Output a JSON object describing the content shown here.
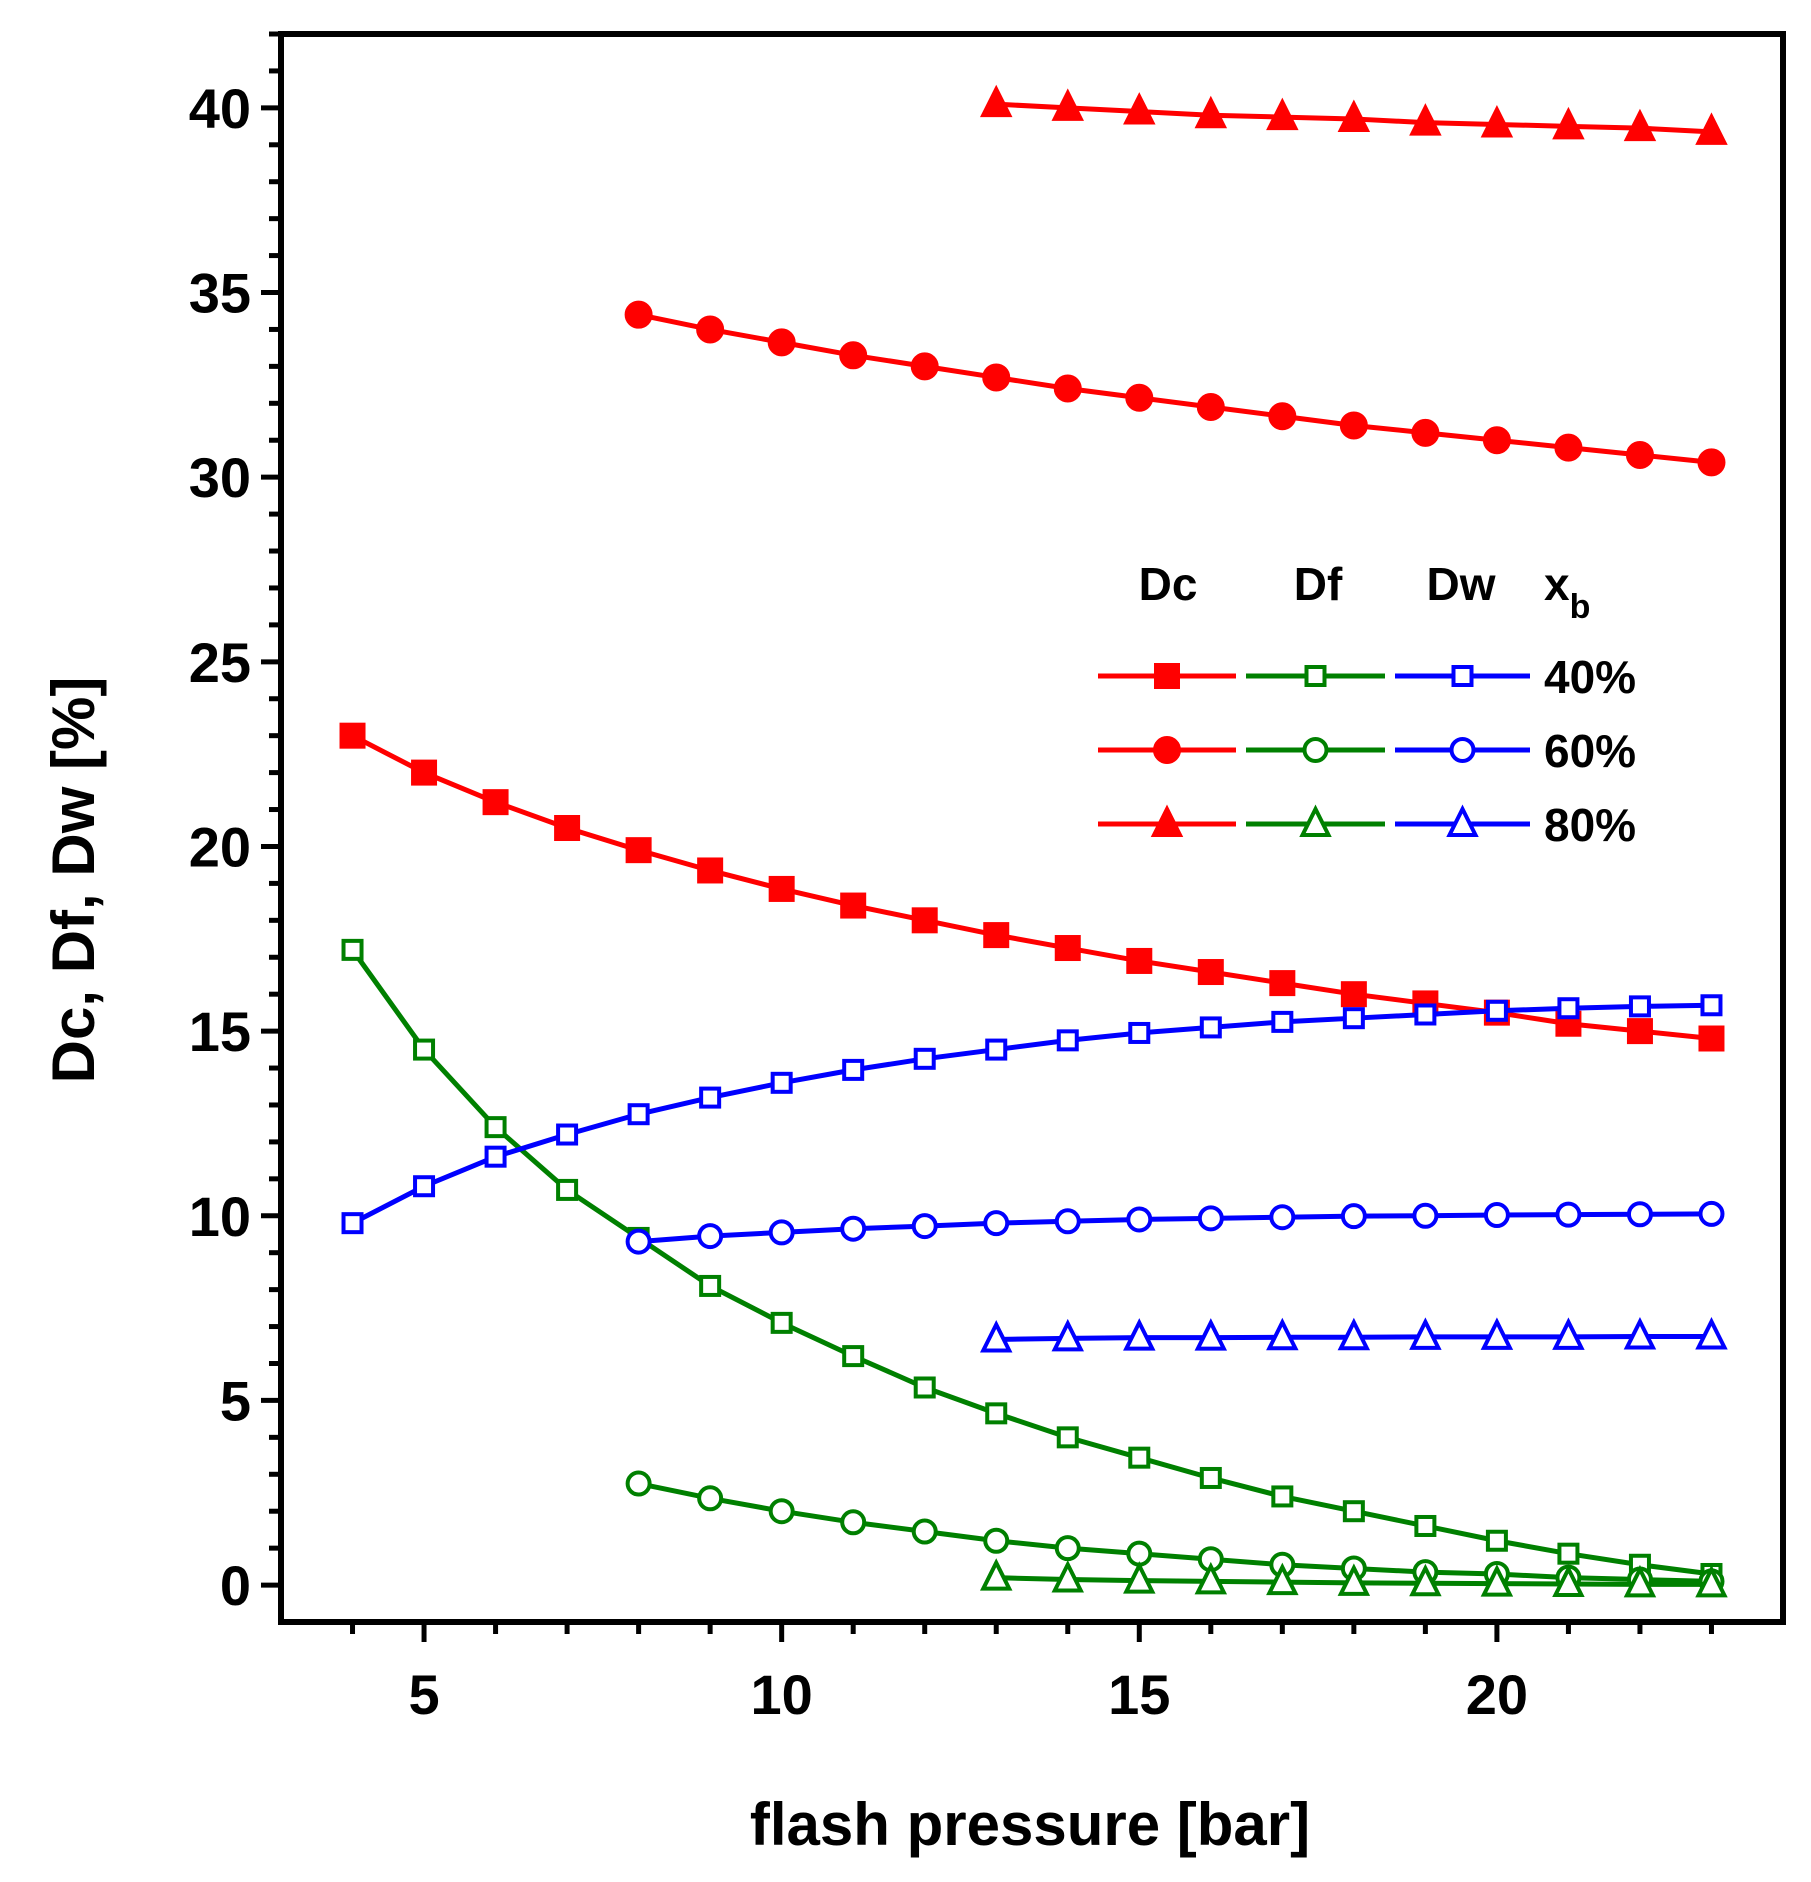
{
  "chart_data": {
    "type": "line",
    "title": "",
    "xlabel": "flash pressure [bar]",
    "ylabel": "Dc, Df, Dw [%]",
    "xlim": [
      3,
      24
    ],
    "ylim": [
      -1,
      42
    ],
    "xticks": [
      5,
      10,
      15,
      20
    ],
    "yticks": [
      0,
      5,
      10,
      15,
      20,
      25,
      30,
      35,
      40
    ],
    "grid": false,
    "colors": {
      "Dc": "#ff0000",
      "Df": "#008000",
      "Dw": "#0000ff"
    },
    "legend": {
      "position": "right",
      "col_headers": [
        "Dc",
        "Df",
        "Dw"
      ],
      "xb_label": "x",
      "xb_sub": "b",
      "rows": [
        {
          "label": "40%",
          "marker": "square"
        },
        {
          "label": "60%",
          "marker": "circle"
        },
        {
          "label": "80%",
          "marker": "triangle"
        }
      ]
    },
    "series": [
      {
        "name": "Dc 40%",
        "quantity": "Dc",
        "xb": "40%",
        "marker": "square",
        "filled": true,
        "color": "#ff0000",
        "x": [
          4,
          5,
          6,
          7,
          8,
          9,
          10,
          11,
          12,
          13,
          14,
          15,
          16,
          17,
          18,
          19,
          20,
          21,
          22,
          23
        ],
        "y": [
          23.0,
          22.0,
          21.2,
          20.5,
          19.9,
          19.35,
          18.85,
          18.4,
          18.0,
          17.6,
          17.25,
          16.9,
          16.6,
          16.3,
          16.0,
          15.75,
          15.5,
          15.2,
          15.0,
          14.8
        ]
      },
      {
        "name": "Df 40%",
        "quantity": "Df",
        "xb": "40%",
        "marker": "square",
        "filled": false,
        "color": "#008000",
        "x": [
          4,
          5,
          6,
          7,
          8,
          9,
          10,
          11,
          12,
          13,
          14,
          15,
          16,
          17,
          18,
          19,
          20,
          21,
          22,
          23
        ],
        "y": [
          17.2,
          14.5,
          12.4,
          10.7,
          9.4,
          8.1,
          7.1,
          6.2,
          5.35,
          4.65,
          4.0,
          3.45,
          2.9,
          2.4,
          2.0,
          1.6,
          1.2,
          0.85,
          0.55,
          0.3
        ]
      },
      {
        "name": "Dw 40%",
        "quantity": "Dw",
        "xb": "40%",
        "marker": "square",
        "filled": false,
        "color": "#0000ff",
        "x": [
          4,
          5,
          6,
          7,
          8,
          9,
          10,
          11,
          12,
          13,
          14,
          15,
          16,
          17,
          18,
          19,
          20,
          21,
          22,
          23
        ],
        "y": [
          9.8,
          10.8,
          11.6,
          12.2,
          12.75,
          13.2,
          13.6,
          13.95,
          14.25,
          14.5,
          14.75,
          14.95,
          15.1,
          15.25,
          15.35,
          15.45,
          15.55,
          15.62,
          15.67,
          15.7
        ]
      },
      {
        "name": "Dc 60%",
        "quantity": "Dc",
        "xb": "60%",
        "marker": "circle",
        "filled": true,
        "color": "#ff0000",
        "x": [
          8,
          9,
          10,
          11,
          12,
          13,
          14,
          15,
          16,
          17,
          18,
          19,
          20,
          21,
          22,
          23
        ],
        "y": [
          34.4,
          34.0,
          33.65,
          33.3,
          33.0,
          32.7,
          32.4,
          32.15,
          31.9,
          31.65,
          31.4,
          31.2,
          31.0,
          30.8,
          30.6,
          30.4
        ]
      },
      {
        "name": "Df 60%",
        "quantity": "Df",
        "xb": "60%",
        "marker": "circle",
        "filled": false,
        "color": "#008000",
        "x": [
          8,
          9,
          10,
          11,
          12,
          13,
          14,
          15,
          16,
          17,
          18,
          19,
          20,
          21,
          22,
          23
        ],
        "y": [
          2.75,
          2.35,
          2.0,
          1.7,
          1.45,
          1.2,
          1.0,
          0.85,
          0.7,
          0.55,
          0.45,
          0.35,
          0.3,
          0.2,
          0.15,
          0.1
        ]
      },
      {
        "name": "Dw 60%",
        "quantity": "Dw",
        "xb": "60%",
        "marker": "circle",
        "filled": false,
        "color": "#0000ff",
        "x": [
          8,
          9,
          10,
          11,
          12,
          13,
          14,
          15,
          16,
          17,
          18,
          19,
          20,
          21,
          22,
          23
        ],
        "y": [
          9.3,
          9.45,
          9.55,
          9.65,
          9.72,
          9.8,
          9.85,
          9.9,
          9.93,
          9.96,
          9.99,
          10.0,
          10.02,
          10.03,
          10.04,
          10.05
        ]
      },
      {
        "name": "Dc 80%",
        "quantity": "Dc",
        "xb": "80%",
        "marker": "triangle",
        "filled": true,
        "color": "#ff0000",
        "x": [
          13,
          14,
          15,
          16,
          17,
          18,
          19,
          20,
          21,
          22,
          23
        ],
        "y": [
          40.1,
          40.0,
          39.9,
          39.8,
          39.75,
          39.7,
          39.6,
          39.55,
          39.5,
          39.45,
          39.35
        ]
      },
      {
        "name": "Df 80%",
        "quantity": "Df",
        "xb": "80%",
        "marker": "triangle",
        "filled": false,
        "color": "#008000",
        "x": [
          13,
          14,
          15,
          16,
          17,
          18,
          19,
          20,
          21,
          22,
          23
        ],
        "y": [
          0.2,
          0.15,
          0.12,
          0.1,
          0.08,
          0.06,
          0.05,
          0.04,
          0.03,
          0.02,
          0.02
        ]
      },
      {
        "name": "Dw 80%",
        "quantity": "Dw",
        "xb": "80%",
        "marker": "triangle",
        "filled": false,
        "color": "#0000ff",
        "x": [
          13,
          14,
          15,
          16,
          17,
          18,
          19,
          20,
          21,
          22,
          23
        ],
        "y": [
          6.65,
          6.68,
          6.7,
          6.7,
          6.71,
          6.71,
          6.72,
          6.72,
          6.72,
          6.73,
          6.73
        ]
      }
    ]
  }
}
